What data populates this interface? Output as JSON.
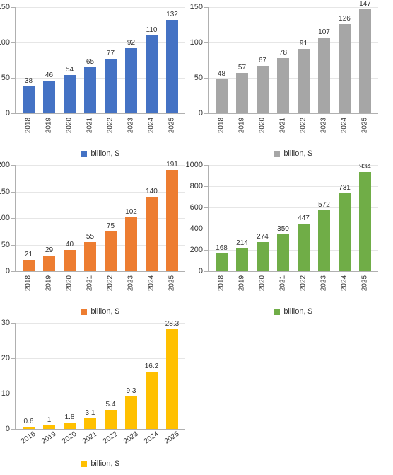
{
  "categories": [
    "2018",
    "2019",
    "2020",
    "2021",
    "2022",
    "2023",
    "2024",
    "2025"
  ],
  "legend_label": "billion, $",
  "background_color": "#ffffff",
  "grid_color": "#e6e6e6",
  "axis_color": "#b0b0b0",
  "label_fontsize": 11,
  "tick_fontsize": 10,
  "bar_width_ratio": 0.6,
  "charts": [
    {
      "color": "#4472c4",
      "values": [
        38,
        46,
        54,
        65,
        77,
        92,
        110,
        132
      ],
      "ylim": [
        0,
        150
      ],
      "ytick_step": 50,
      "x_rotation": -90
    },
    {
      "color": "#a6a6a6",
      "values": [
        48,
        57,
        67,
        78,
        91,
        107,
        126,
        147
      ],
      "ylim": [
        0,
        150
      ],
      "ytick_step": 50,
      "x_rotation": -90
    },
    {
      "color": "#ed7d31",
      "values": [
        21,
        29,
        40,
        55,
        75,
        102,
        140,
        191
      ],
      "ylim": [
        0,
        200
      ],
      "ytick_step": 50,
      "x_rotation": -90
    },
    {
      "color": "#70ad47",
      "values": [
        168,
        214,
        274,
        350,
        447,
        572,
        731,
        934
      ],
      "ylim": [
        0,
        1000
      ],
      "ytick_step": 200,
      "x_rotation": -90
    },
    {
      "color": "#ffc000",
      "values": [
        0.6,
        1,
        1.8,
        3.1,
        5.4,
        9.3,
        16.2,
        28.3
      ],
      "ylim": [
        0,
        30
      ],
      "ytick_step": 10,
      "x_rotation": -35
    }
  ]
}
